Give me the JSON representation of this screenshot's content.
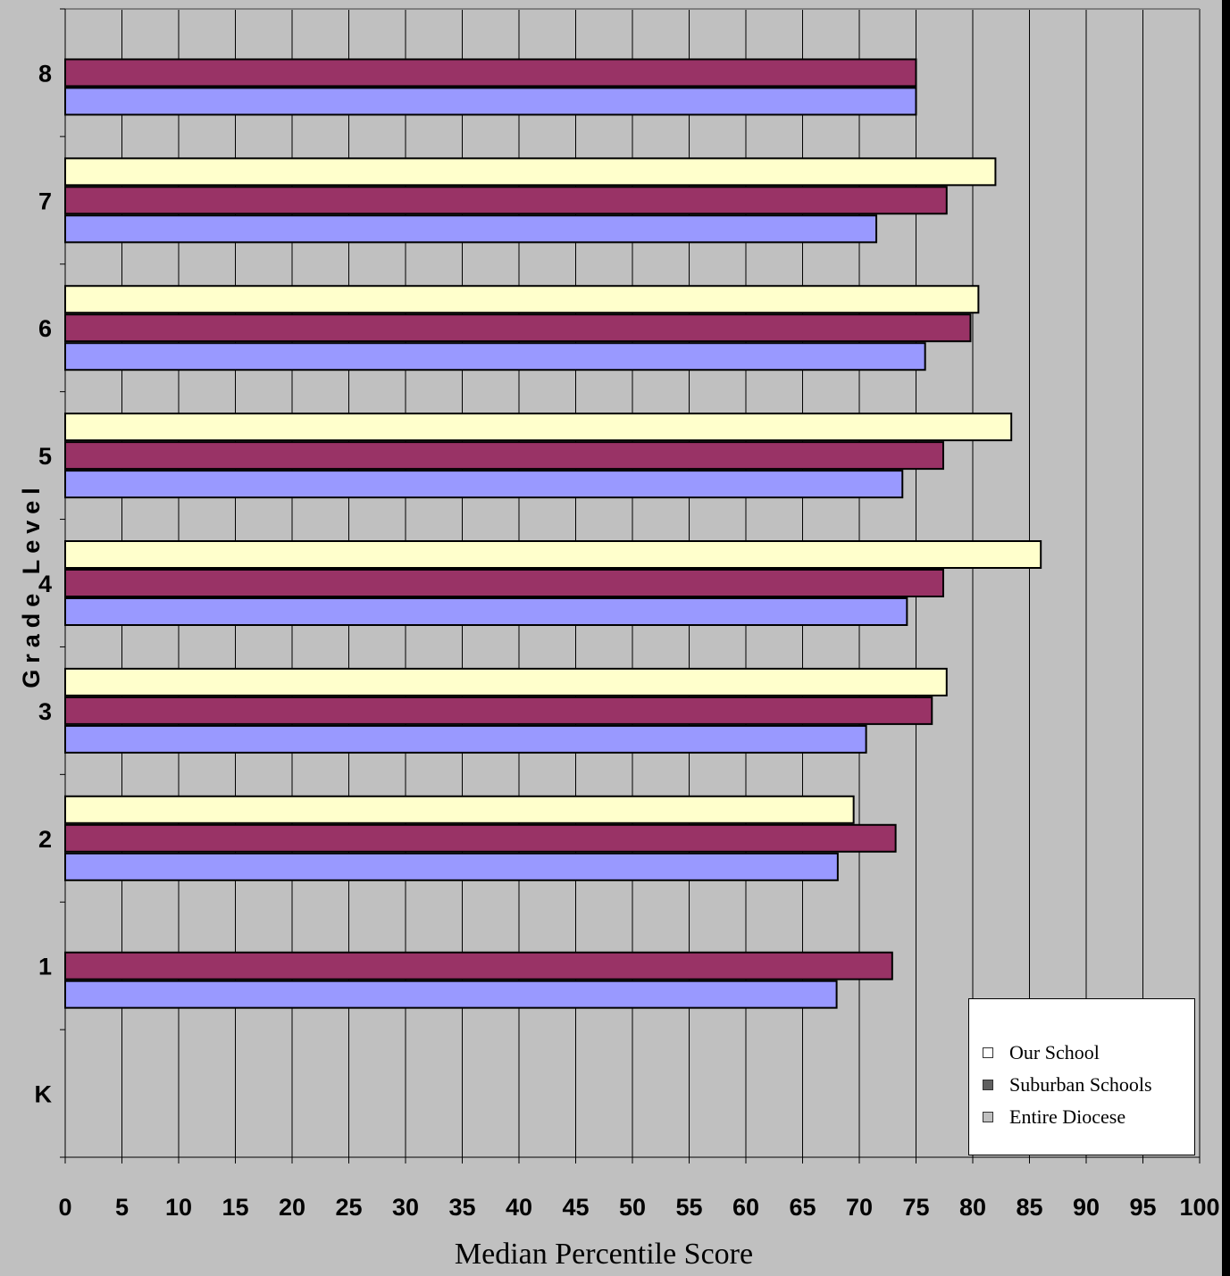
{
  "chart_data": {
    "type": "bar",
    "orientation": "horizontal",
    "categories": [
      "K",
      "1",
      "2",
      "3",
      "4",
      "5",
      "6",
      "7",
      "8"
    ],
    "series": [
      {
        "name": "Our School",
        "color": "#ffffcc",
        "values": [
          null,
          null,
          69.5,
          77.7,
          86.0,
          83.4,
          80.5,
          82.0,
          null
        ]
      },
      {
        "name": "Suburban Schools",
        "color": "#993366",
        "values": [
          null,
          72.9,
          73.2,
          76.4,
          77.4,
          77.4,
          79.8,
          77.7,
          75.0
        ]
      },
      {
        "name": "Entire Diocese",
        "color": "#9999ff",
        "values": [
          null,
          68.0,
          68.1,
          70.6,
          74.2,
          73.8,
          75.8,
          71.5,
          75.0
        ]
      }
    ],
    "xlabel": "Median Percentile Score",
    "ylabel": "Grade Level",
    "xlim": [
      0,
      100
    ],
    "xticks": [
      0,
      5,
      10,
      15,
      20,
      25,
      30,
      35,
      40,
      45,
      50,
      55,
      60,
      65,
      70,
      75,
      80,
      85,
      90,
      95,
      100
    ],
    "grid": "vertical",
    "legend_position": "bottom-right",
    "plot_background": "#c0c0c0"
  },
  "legend": {
    "items": [
      {
        "label": "Our School",
        "swatch": "#ffffff"
      },
      {
        "label": "Suburban Schools",
        "swatch": "#606060"
      },
      {
        "label": "Entire Diocese",
        "swatch": "#c0c0c0"
      }
    ]
  }
}
